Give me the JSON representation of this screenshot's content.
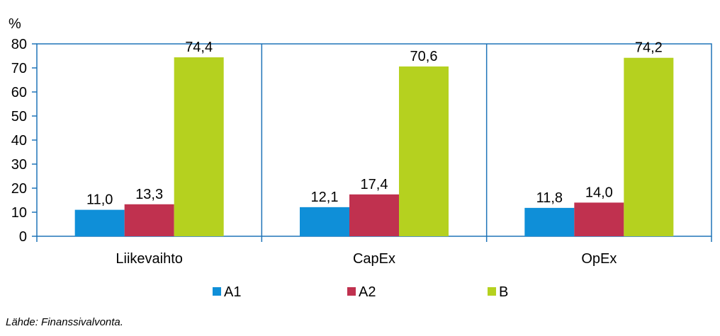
{
  "chart_data": {
    "type": "bar",
    "unit_label": "%",
    "categories": [
      "Liikevaihto",
      "CapEx",
      "OpEx"
    ],
    "series": [
      {
        "name": "A1",
        "color": "#0f8fd8",
        "values": [
          11.0,
          12.1,
          11.8
        ],
        "labels": [
          "11,0",
          "12,1",
          "11,8"
        ]
      },
      {
        "name": "A2",
        "color": "#c0314f",
        "values": [
          13.3,
          17.4,
          14.0
        ],
        "labels": [
          "13,3",
          "17,4",
          "14,0"
        ]
      },
      {
        "name": "B",
        "color": "#b5d11f",
        "values": [
          74.4,
          70.6,
          74.2
        ],
        "labels": [
          "74,4",
          "70,6",
          "74,2"
        ]
      }
    ],
    "ylim": [
      0,
      80
    ],
    "yticks": [
      0,
      10,
      20,
      30,
      40,
      50,
      60,
      70,
      80
    ],
    "grid": false,
    "legend_position": "bottom",
    "source": "Lähde: Finanssivalvonta."
  }
}
